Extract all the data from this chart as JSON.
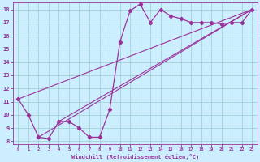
{
  "title": "",
  "xlabel": "Windchill (Refroidissement éolien,°C)",
  "ylabel": "",
  "background_color": "#cceeff",
  "grid_color": "#99cccc",
  "line_color": "#993399",
  "x_data": [
    0,
    1,
    2,
    3,
    4,
    5,
    6,
    7,
    8,
    9,
    10,
    11,
    12,
    13,
    14,
    15,
    16,
    17,
    18,
    19,
    20,
    21,
    22,
    23
  ],
  "y_data": [
    11.2,
    10.0,
    8.3,
    8.2,
    9.5,
    9.5,
    9.0,
    8.3,
    8.3,
    10.4,
    15.5,
    17.9,
    18.4,
    17.0,
    18.0,
    17.5,
    17.3,
    17.0,
    17.0,
    17.0,
    16.9,
    17.0,
    17.0,
    18.0
  ],
  "trend_lines": [
    [
      0,
      11.2,
      23,
      18.0
    ],
    [
      2,
      8.3,
      23,
      18.0
    ],
    [
      4,
      9.5,
      23,
      18.0
    ]
  ],
  "ylim": [
    7.8,
    18.5
  ],
  "xlim": [
    -0.5,
    23.5
  ],
  "yticks": [
    8,
    9,
    10,
    11,
    12,
    13,
    14,
    15,
    16,
    17,
    18
  ],
  "xticks": [
    0,
    1,
    2,
    3,
    4,
    5,
    6,
    7,
    8,
    9,
    10,
    11,
    12,
    13,
    14,
    15,
    16,
    17,
    18,
    19,
    20,
    21,
    22,
    23
  ]
}
